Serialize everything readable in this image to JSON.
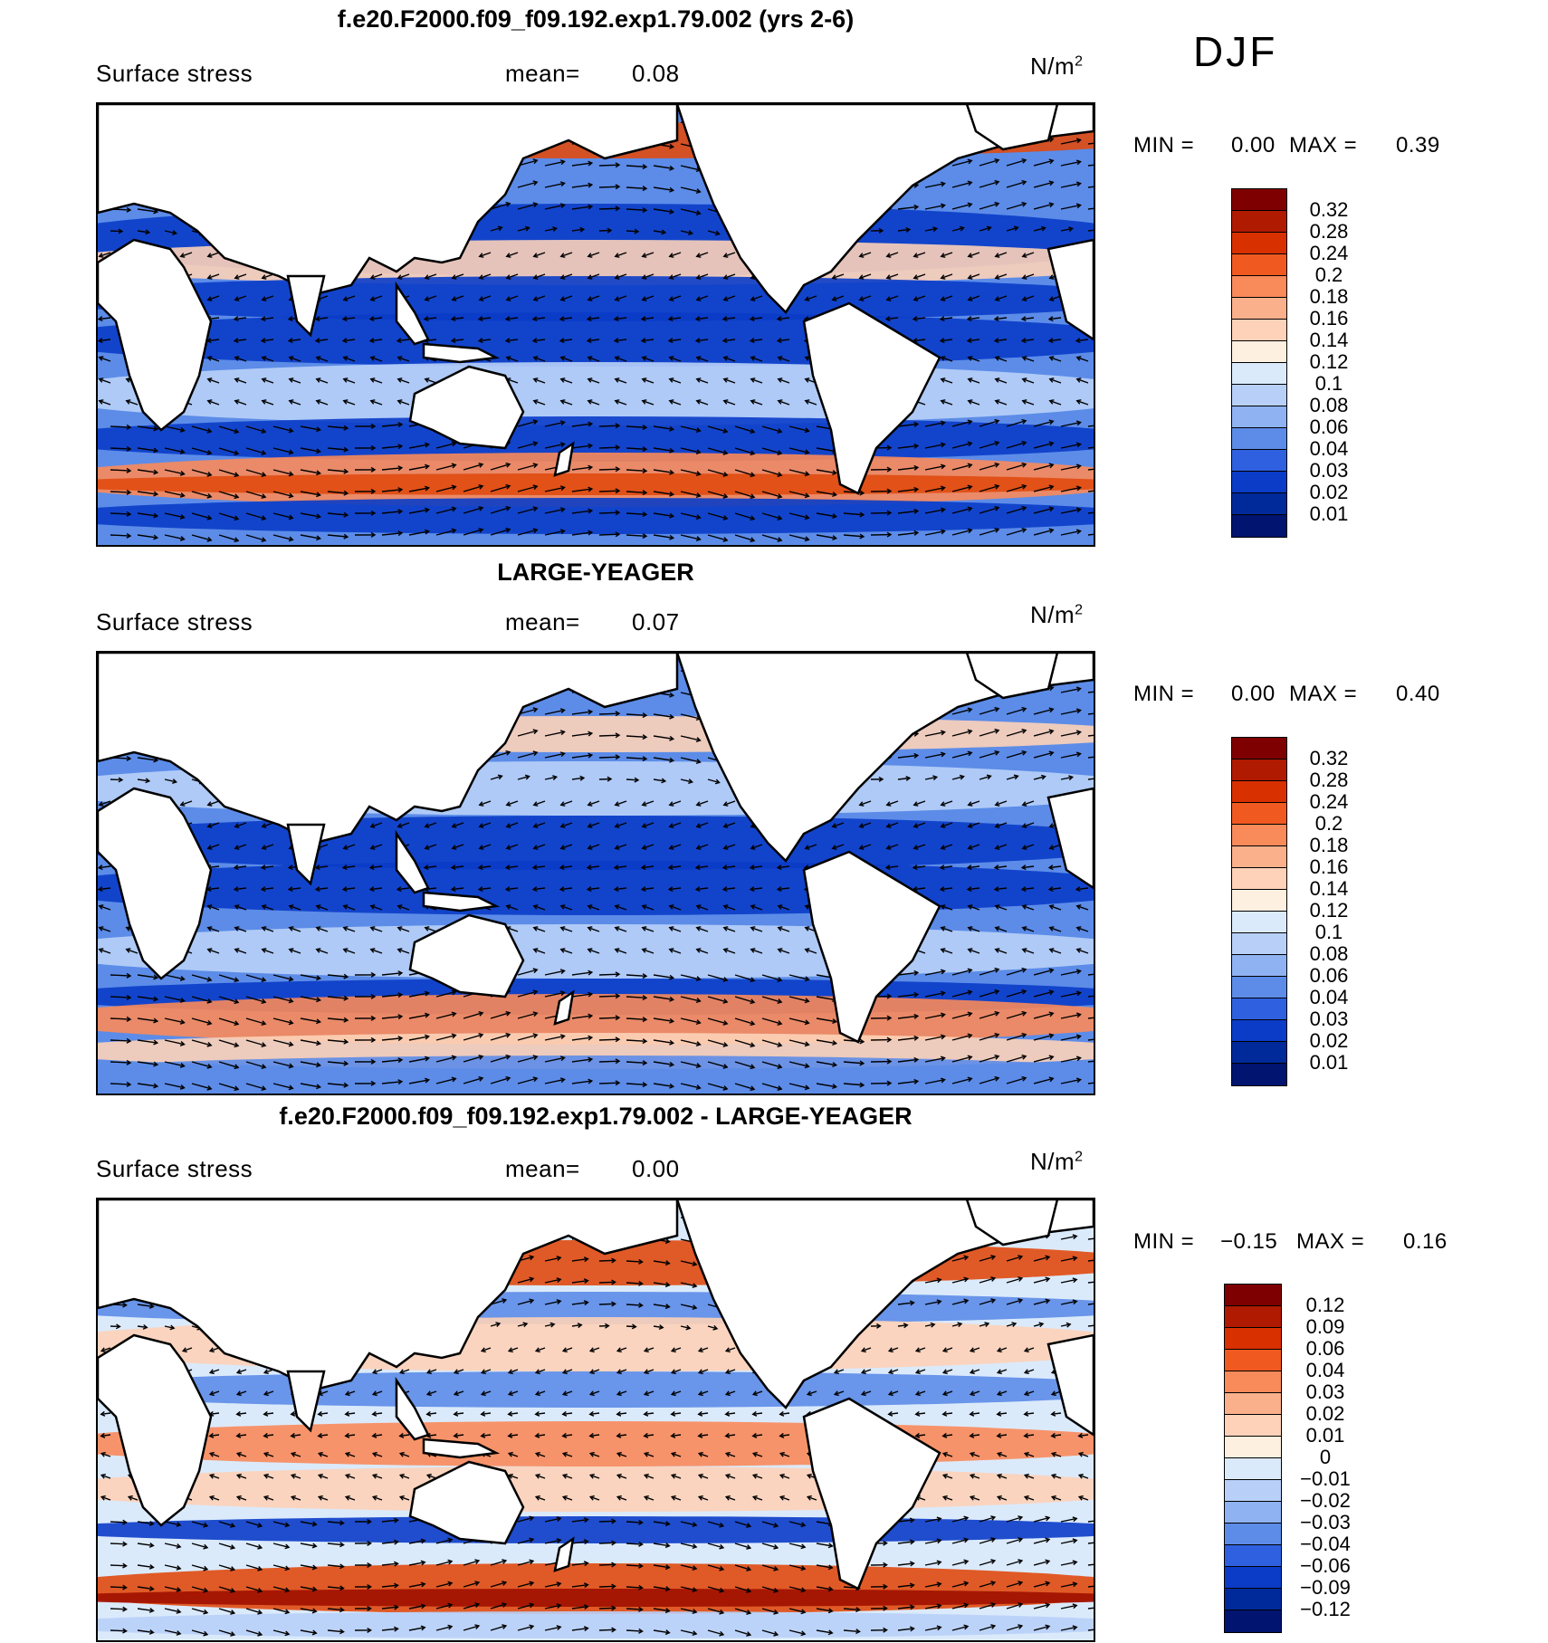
{
  "season": "DJF",
  "units_main": "N/m",
  "units_sup": "2",
  "panels": [
    {
      "title": "f.e20.F2000.f09_f09.192.exp1.79.002 (yrs 2-6)",
      "variable": "Surface stress",
      "mean_label": "mean=",
      "mean_value": "0.08",
      "min_label": "MIN =",
      "min_value": "0.00",
      "max_label": "MAX =",
      "max_value": "0.39"
    },
    {
      "title": "LARGE-YEAGER",
      "variable": "Surface stress",
      "mean_label": "mean=",
      "mean_value": "0.07",
      "min_label": "MIN =",
      "min_value": "0.00",
      "max_label": "MAX =",
      "max_value": "0.40"
    },
    {
      "title": "f.e20.F2000.f09_f09.192.exp1.79.002 - LARGE-YEAGER",
      "variable": "Surface stress",
      "mean_label": "mean=",
      "mean_value": "0.00",
      "min_label": "MIN =",
      "min_value": "−0.15",
      "max_label": "MAX =",
      "max_value": "0.16"
    }
  ],
  "colorbar_abs": {
    "ticks": [
      "0.32",
      "0.28",
      "0.24",
      "0.2",
      "0.18",
      "0.16",
      "0.14",
      "0.12",
      "0.1",
      "0.08",
      "0.06",
      "0.04",
      "0.03",
      "0.02",
      "0.01"
    ],
    "colors": [
      "#7f0000",
      "#b01a00",
      "#d93000",
      "#f05a20",
      "#f98a5a",
      "#fbb08c",
      "#fdd2b8",
      "#fdf0e0",
      "#dbeafb",
      "#b8d0f8",
      "#8fb2f2",
      "#5c8ce8",
      "#2f60e0",
      "#0a3cc8",
      "#002a9a",
      "#001470"
    ]
  },
  "colorbar_diff": {
    "ticks": [
      "0.12",
      "0.09",
      "0.06",
      "0.04",
      "0.03",
      "0.02",
      "0.01",
      "0",
      "−0.01",
      "−0.02",
      "−0.03",
      "−0.04",
      "−0.06",
      "−0.09",
      "−0.12"
    ],
    "colors": [
      "#7f0000",
      "#b01a00",
      "#d93000",
      "#f05a20",
      "#f98a5a",
      "#fbb08c",
      "#fdd2b8",
      "#fdf0e0",
      "#dbeafb",
      "#b8d0f8",
      "#8fb2f2",
      "#5c8ce8",
      "#2f60e0",
      "#0a3cc8",
      "#002a9a",
      "#001470"
    ]
  },
  "map_palette": {
    "ocean_low": "#0a3cc8",
    "ocean_mid": "#5c8ce8",
    "ocean_light": "#b8d0f8",
    "ocean_pale": "#dbeafb",
    "warm_pale": "#fdd2b8",
    "warm_mid": "#f98a5a",
    "warm_high": "#e04a10",
    "warm_max": "#a01000",
    "land": "#ffffff",
    "coast": "#000000"
  }
}
